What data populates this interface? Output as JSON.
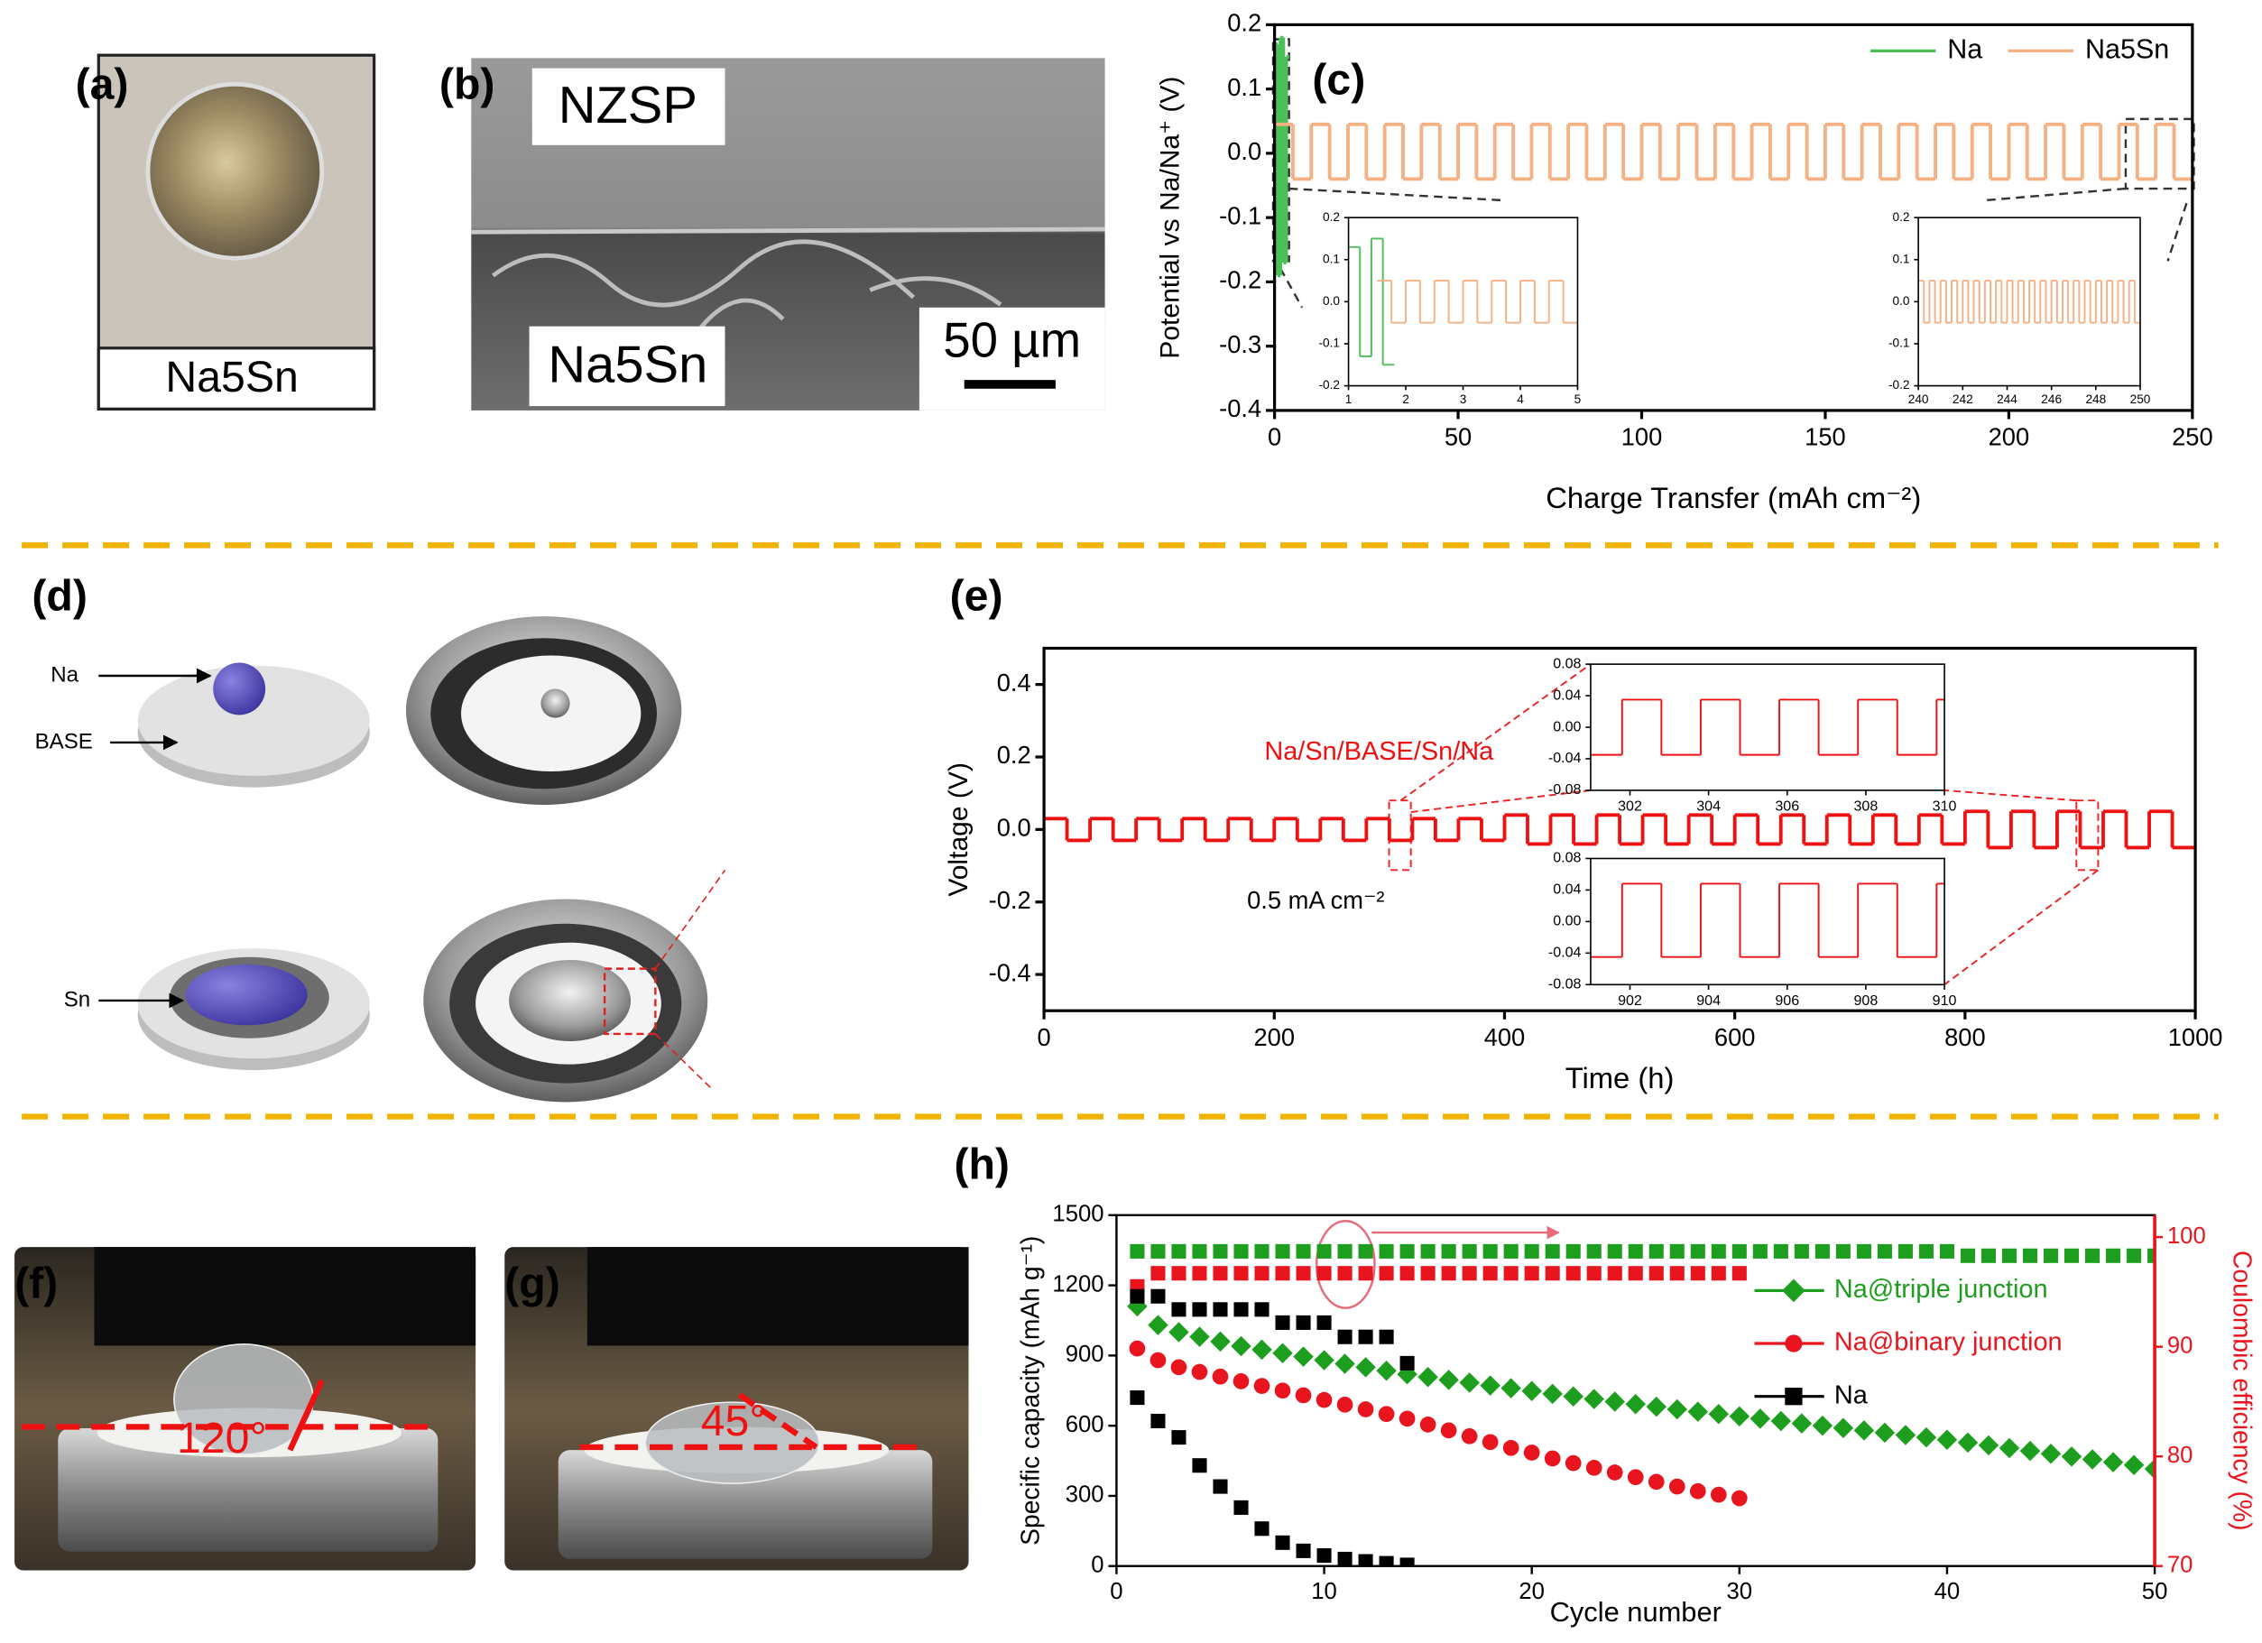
{
  "figure": {
    "panel_labels": [
      "(a)",
      "(b)",
      "(c)",
      "(d)",
      "(e)",
      "(f)",
      "(g)",
      "(h)"
    ],
    "a": {
      "caption": "Na5Sn"
    },
    "b": {
      "top": "NZSP",
      "bottom": "Na5Sn",
      "scale": "50 µm"
    },
    "d": {
      "labels": [
        "Na",
        "BASE",
        "Sn"
      ]
    },
    "f": {
      "angle": "120°"
    },
    "g": {
      "angle": "45°"
    }
  },
  "chart_data": [
    {
      "type": "line",
      "drawstyle": "steps-post",
      "xlabel": "Charge Transfer (mAh cm⁻²)",
      "ylabel": "Potential vs Na/Na⁺ (V)",
      "xlim": [
        0,
        250
      ],
      "xticks": [
        0,
        50,
        100,
        150,
        200,
        250
      ],
      "ylim": [
        -0.4,
        0.2
      ],
      "yticks": [
        -0.4,
        -0.3,
        -0.2,
        -0.1,
        {
          "value": 0,
          "label": "0.0"
        },
        0.1,
        0.2
      ],
      "legend": "upper right",
      "series": [
        {
          "name": "Na",
          "color": "#4cbf58",
          "x": [
            0,
            0.8,
            1.6,
            2.4,
            3.2
          ],
          "values": [
            0.17,
            -0.19,
            0.18,
            -0.17,
            0.15
          ]
        },
        {
          "name": "Na5Sn",
          "color": "#f4b183",
          "x": [
            0,
            5,
            10,
            15,
            20,
            25,
            30,
            35,
            40,
            45,
            50,
            55,
            60,
            65,
            70,
            75,
            80,
            85,
            90,
            95,
            100,
            105,
            110,
            115,
            120,
            125,
            130,
            135,
            140,
            145,
            150,
            155,
            160,
            165,
            170,
            175,
            180,
            185,
            190,
            195,
            200,
            205,
            210,
            215,
            220,
            225,
            230,
            235,
            240,
            245
          ],
          "values": [
            0.045,
            -0.04,
            0.045,
            -0.04,
            0.045,
            -0.04,
            0.045,
            -0.04,
            0.045,
            -0.04,
            0.045,
            -0.04,
            0.045,
            -0.04,
            0.045,
            -0.04,
            0.045,
            -0.04,
            0.045,
            -0.04,
            0.045,
            -0.04,
            0.045,
            -0.04,
            0.045,
            -0.04,
            0.045,
            -0.04,
            0.045,
            -0.04,
            0.045,
            -0.04,
            0.045,
            -0.04,
            0.045,
            -0.04,
            0.045,
            -0.04,
            0.045,
            -0.04,
            0.045,
            -0.04,
            0.045,
            -0.04,
            0.045,
            -0.04,
            0.045,
            -0.04,
            0.045,
            -0.04
          ]
        }
      ]
    },
    {
      "type": "line",
      "drawstyle": "steps-post",
      "xlim": [
        1,
        5
      ],
      "xticks": [
        1,
        2,
        3,
        4,
        5
      ],
      "ylim": [
        -0.2,
        0.2
      ],
      "yticks": [
        -0.2,
        -0.1,
        {
          "value": 0,
          "label": "0.0"
        },
        0.1,
        0.2
      ],
      "series": [
        {
          "color": "#4cbf58",
          "x": [
            1,
            1.2,
            1.4,
            1.6
          ],
          "values": [
            0.13,
            -0.13,
            0.15,
            -0.15
          ]
        },
        {
          "color": "#f4b183",
          "x": [
            1.5,
            1.75,
            2,
            2.25,
            2.5,
            2.75,
            3,
            3.25,
            3.5,
            3.75,
            4,
            4.25,
            4.5,
            4.75
          ],
          "values": [
            0.05,
            -0.05,
            0.05,
            -0.05,
            0.05,
            -0.05,
            0.05,
            -0.05,
            0.05,
            -0.05,
            0.05,
            -0.05,
            0.05,
            -0.05
          ]
        }
      ]
    },
    {
      "type": "line",
      "drawstyle": "steps-post",
      "xlim": [
        240,
        250
      ],
      "xticks": [
        240,
        242,
        244,
        246,
        248,
        250
      ],
      "ylim": [
        -0.2,
        0.2
      ],
      "yticks": [
        -0.2,
        -0.1,
        {
          "value": 0,
          "label": "0.0"
        },
        0.1,
        0.2
      ],
      "series": [
        {
          "color": "#f4b183",
          "x": [
            240,
            240.25,
            240.5,
            240.75,
            241,
            241.25,
            241.5,
            241.75,
            242,
            242.25,
            242.5,
            242.75,
            243,
            243.25,
            243.5,
            243.75,
            244,
            244.25,
            244.5,
            244.75,
            245,
            245.25,
            245.5,
            245.75,
            246,
            246.25,
            246.5,
            246.75,
            247,
            247.25,
            247.5,
            247.75,
            248,
            248.25,
            248.5,
            248.75,
            249,
            249.25,
            249.5,
            249.75
          ],
          "values": [
            0.05,
            -0.05,
            0.05,
            -0.05,
            0.05,
            -0.05,
            0.05,
            -0.05,
            0.05,
            -0.05,
            0.05,
            -0.05,
            0.05,
            -0.05,
            0.05,
            -0.05,
            0.05,
            -0.05,
            0.05,
            -0.05,
            0.05,
            -0.05,
            0.05,
            -0.05,
            0.05,
            -0.05,
            0.05,
            -0.05,
            0.05,
            -0.05,
            0.05,
            -0.05,
            0.05,
            -0.05,
            0.05,
            -0.05,
            0.05,
            -0.05,
            0.05,
            -0.05
          ]
        }
      ]
    },
    {
      "type": "line",
      "drawstyle": "steps-post",
      "xlabel": "Time (h)",
      "ylabel": "Voltage (V)",
      "xlim": [
        0,
        1000
      ],
      "xticks": [
        0,
        200,
        400,
        600,
        800,
        1000
      ],
      "ylim": [
        -0.5,
        0.5
      ],
      "yticks": [
        -0.4,
        -0.2,
        {
          "value": 0,
          "label": "0.0"
        },
        0.2,
        0.4
      ],
      "annotations": [
        {
          "text": "Na/Sn/BASE/Sn/Na",
          "color": "#ee1111"
        },
        {
          "text": "0.5 mA cm⁻²",
          "color": "#000000"
        }
      ],
      "series": [
        {
          "color": "#ee1111",
          "x": [
            0,
            20,
            40,
            60,
            80,
            100,
            120,
            140,
            160,
            180,
            200,
            220,
            240,
            260,
            280,
            300,
            320,
            340,
            360,
            380,
            400,
            420,
            440,
            460,
            480,
            500,
            520,
            540,
            560,
            580,
            600,
            620,
            640,
            660,
            680,
            700,
            720,
            740,
            760,
            780,
            800,
            820,
            840,
            860,
            880,
            900,
            920,
            940,
            960,
            980
          ],
          "values": [
            0.03,
            -0.03,
            0.03,
            -0.03,
            0.03,
            -0.03,
            0.03,
            -0.03,
            0.03,
            -0.03,
            0.03,
            -0.03,
            0.03,
            -0.03,
            0.03,
            -0.03,
            0.03,
            -0.03,
            0.03,
            -0.03,
            0.04,
            -0.04,
            0.04,
            -0.04,
            0.04,
            -0.04,
            0.04,
            -0.04,
            0.04,
            -0.04,
            0.04,
            -0.04,
            0.04,
            -0.04,
            0.04,
            -0.04,
            0.04,
            -0.04,
            0.04,
            -0.04,
            0.05,
            -0.05,
            0.05,
            -0.05,
            0.05,
            -0.05,
            0.05,
            -0.05,
            0.05,
            -0.05
          ]
        }
      ]
    },
    {
      "type": "line",
      "drawstyle": "steps-post",
      "xlim": [
        301,
        310
      ],
      "xticks": [
        302,
        304,
        306,
        308,
        310
      ],
      "ylim": [
        -0.08,
        0.08
      ],
      "yticks": [
        -0.08,
        -0.04,
        {
          "value": 0,
          "label": "0.00"
        },
        0.04,
        0.08
      ],
      "series": [
        {
          "color": "#ee1111",
          "x": [
            301,
            301.8,
            302.8,
            303.8,
            304.8,
            305.8,
            306.8,
            307.8,
            308.8,
            309.8
          ],
          "values": [
            -0.035,
            0.035,
            -0.035,
            0.035,
            -0.035,
            0.035,
            -0.035,
            0.035,
            -0.035,
            0.035
          ]
        }
      ]
    },
    {
      "type": "line",
      "drawstyle": "steps-post",
      "xlim": [
        901,
        910
      ],
      "xticks": [
        902,
        904,
        906,
        908,
        910
      ],
      "ylim": [
        -0.08,
        0.08
      ],
      "yticks": [
        -0.08,
        -0.04,
        {
          "value": 0,
          "label": "0.00"
        },
        0.04,
        0.08
      ],
      "series": [
        {
          "color": "#ee1111",
          "x": [
            901,
            901.8,
            902.8,
            903.8,
            904.8,
            905.8,
            906.8,
            907.8,
            908.8,
            909.8
          ],
          "values": [
            -0.045,
            0.048,
            -0.045,
            0.048,
            -0.045,
            0.048,
            -0.045,
            0.048,
            -0.045,
            0.048
          ]
        }
      ]
    },
    {
      "type": "scatter",
      "xlabel": "Cycle number",
      "ylabel": "Specific capacity (mAh g⁻¹)",
      "y2label": "Coulombic efficiency (%)",
      "xlim": [
        0,
        50
      ],
      "xticks": [
        0,
        10,
        20,
        30,
        40,
        50
      ],
      "ylim": [
        0,
        1500
      ],
      "yticks": [
        0,
        300,
        600,
        900,
        1200,
        1500
      ],
      "y2lim": [
        70,
        102
      ],
      "y2ticks": [
        70,
        80,
        90,
        100
      ],
      "y2color": "#e8141e",
      "legend": "center right",
      "x": [
        1,
        2,
        3,
        4,
        5,
        6,
        7,
        8,
        9,
        10,
        11,
        12,
        13,
        14,
        15,
        16,
        17,
        18,
        19,
        20,
        21,
        22,
        23,
        24,
        25,
        26,
        27,
        28,
        29,
        30,
        31,
        32,
        33,
        34,
        35,
        36,
        37,
        38,
        39,
        40,
        41,
        42,
        43,
        44,
        45,
        46,
        47,
        48,
        49,
        50
      ],
      "series": [
        {
          "name": "Na@triple junction",
          "color": "#1e9e1e",
          "marker": "diamond",
          "values": [
            1110,
            1030,
            1000,
            980,
            960,
            940,
            925,
            910,
            895,
            880,
            865,
            850,
            835,
            820,
            808,
            796,
            784,
            772,
            760,
            748,
            736,
            725,
            714,
            703,
            692,
            681,
            670,
            660,
            650,
            640,
            630,
            620,
            610,
            600,
            590,
            580,
            570,
            560,
            550,
            540,
            528,
            516,
            504,
            492,
            480,
            468,
            456,
            444,
            432,
            415
          ],
          "y2_values": [
            98.7,
            98.7,
            98.7,
            98.7,
            98.7,
            98.7,
            98.7,
            98.7,
            98.7,
            98.7,
            98.7,
            98.7,
            98.7,
            98.7,
            98.7,
            98.7,
            98.7,
            98.7,
            98.7,
            98.7,
            98.7,
            98.7,
            98.7,
            98.7,
            98.7,
            98.7,
            98.7,
            98.7,
            98.7,
            98.7,
            98.7,
            98.7,
            98.7,
            98.7,
            98.7,
            98.7,
            98.7,
            98.7,
            98.7,
            98.7,
            98.3,
            98.3,
            98.3,
            98.3,
            98.3,
            98.3,
            98.3,
            98.3,
            98.3,
            98.3
          ]
        },
        {
          "name": "Na@binary junction",
          "color": "#e8141e",
          "marker": "circle",
          "values": [
            930,
            880,
            850,
            830,
            810,
            790,
            770,
            750,
            730,
            710,
            690,
            670,
            650,
            630,
            605,
            580,
            555,
            530,
            505,
            485,
            460,
            440,
            420,
            400,
            380,
            360,
            340,
            320,
            305,
            290,
            null,
            null,
            null,
            null,
            null,
            null,
            null,
            null,
            null,
            null,
            null,
            null,
            null,
            null,
            null,
            null,
            null,
            null,
            null,
            null
          ],
          "y2_values": [
            95.5,
            96.7,
            96.7,
            96.7,
            96.7,
            96.7,
            96.7,
            96.7,
            96.7,
            96.7,
            96.7,
            96.7,
            96.7,
            96.7,
            96.7,
            96.7,
            96.7,
            96.7,
            96.7,
            96.7,
            96.7,
            96.7,
            96.7,
            96.7,
            96.7,
            96.7,
            96.7,
            96.7,
            96.7,
            96.7,
            null,
            null,
            null,
            null,
            null,
            null,
            null,
            null,
            null,
            null,
            null,
            null,
            null,
            null,
            null,
            null,
            null,
            null,
            null,
            null
          ]
        },
        {
          "name": "Na",
          "color": "#000000",
          "marker": "square",
          "values": [
            720,
            620,
            550,
            430,
            340,
            250,
            160,
            100,
            65,
            45,
            30,
            20,
            12,
            5,
            null,
            null,
            null,
            null,
            null,
            null,
            null,
            null,
            null,
            null,
            null,
            null,
            null,
            null,
            null,
            null,
            null,
            null,
            null,
            null,
            null,
            null,
            null,
            null,
            null,
            null,
            null,
            null,
            null,
            null,
            null,
            null,
            null,
            null,
            null,
            null
          ],
          "y2_values": [
            94.6,
            94.6,
            93.4,
            93.4,
            93.4,
            93.4,
            93.4,
            92.2,
            92.2,
            92.2,
            90.9,
            90.9,
            90.9,
            88.5,
            null,
            null,
            null,
            null,
            null,
            null,
            null,
            null,
            null,
            null,
            null,
            null,
            null,
            null,
            null,
            null,
            null,
            null,
            null,
            null,
            null,
            null,
            null,
            null,
            null,
            null,
            null,
            null,
            null,
            null,
            null,
            null,
            null,
            null,
            null,
            null
          ]
        }
      ]
    }
  ]
}
